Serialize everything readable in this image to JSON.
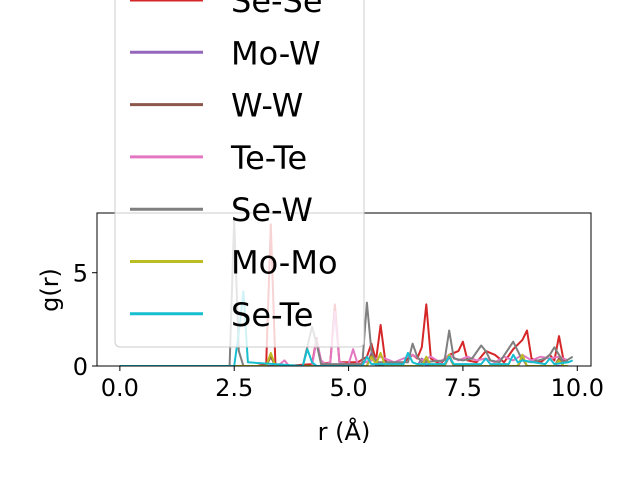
{
  "chart_data": {
    "type": "line",
    "title": "",
    "xlabel": "r (Å)",
    "ylabel": "g(r)",
    "xlim": [
      -0.5,
      10.3
    ],
    "ylim": [
      0,
      8.2
    ],
    "x_ticks": [
      0.0,
      2.5,
      5.0,
      7.5,
      10.0
    ],
    "x_tick_labels": [
      "0.0",
      "2.5",
      "5.0",
      "7.5",
      "10.0"
    ],
    "y_ticks": [
      0,
      5
    ],
    "y_tick_labels": [
      "0",
      "5"
    ],
    "grid": false,
    "legend_position": "upper-left, extends above plot area",
    "series": [
      {
        "name": "Se-Se",
        "color": "#d62728",
        "x": [
          0,
          3.0,
          3.2,
          3.3,
          3.4,
          3.6,
          4.2,
          4.3,
          4.4,
          4.6,
          4.7,
          4.8,
          5.2,
          5.4,
          5.5,
          5.6,
          5.7,
          5.8,
          5.9,
          6.2,
          6.4,
          6.5,
          6.6,
          6.7,
          6.8,
          7.0,
          7.2,
          7.4,
          7.5,
          7.6,
          7.8,
          8.0,
          8.2,
          8.4,
          8.6,
          8.8,
          8.9,
          9.0,
          9.2,
          9.4,
          9.5,
          9.6,
          9.7,
          9.8
        ],
        "y": [
          0,
          0,
          0.1,
          7.6,
          0.1,
          0,
          0.1,
          1.5,
          0.1,
          0.2,
          3.3,
          0.2,
          0.2,
          0.5,
          1.2,
          0.3,
          2.2,
          0.3,
          0.1,
          0.2,
          0.6,
          0.4,
          1.0,
          3.3,
          0.4,
          0.1,
          0.6,
          0.8,
          1.3,
          0.3,
          0.2,
          0.8,
          0.6,
          0.2,
          0.9,
          1.4,
          1.9,
          0.4,
          0.2,
          0.6,
          0.3,
          1.6,
          0.3,
          0.2
        ]
      },
      {
        "name": "Mo-W",
        "color": "#9467bd",
        "x": [
          0,
          3.2,
          3.3,
          3.4,
          5.4,
          5.5,
          5.6,
          6.5,
          6.6,
          6.7,
          7.1,
          7.2,
          7.3,
          8.7,
          8.8,
          8.9,
          9.8
        ],
        "y": [
          0,
          0,
          0.6,
          0,
          0,
          0.7,
          0,
          0,
          0.4,
          0,
          0,
          0.5,
          0,
          0,
          0.4,
          0,
          0
        ]
      },
      {
        "name": "W-W",
        "color": "#8c564b",
        "x": [
          0,
          3.2,
          3.3,
          3.4,
          5.4,
          5.5,
          5.6,
          5.7,
          6.6,
          6.7,
          6.8,
          7.1,
          7.2,
          7.3,
          8.7,
          8.8,
          8.9,
          9.5,
          9.6,
          9.7,
          9.8
        ],
        "y": [
          0,
          0,
          0.5,
          0,
          0,
          0.6,
          0.2,
          0,
          0,
          0.4,
          0,
          0,
          0.6,
          0,
          0,
          0.5,
          0,
          0,
          0.4,
          0,
          0
        ]
      },
      {
        "name": "Te-Te",
        "color": "#e377c2",
        "x": [
          0,
          3.4,
          3.5,
          3.6,
          3.7,
          4.2,
          4.3,
          4.4,
          4.5,
          4.6,
          4.7,
          4.8,
          5.0,
          5.1,
          5.2,
          5.5,
          5.7,
          6.0,
          6.2,
          6.4,
          6.6,
          6.8,
          7.0,
          7.2,
          7.4,
          7.6,
          7.8,
          8.0,
          8.2,
          8.4,
          8.6,
          8.8,
          9.0,
          9.2,
          9.4,
          9.6,
          9.8
        ],
        "y": [
          0,
          0,
          0.1,
          0.3,
          0,
          0,
          1.4,
          0.3,
          0.1,
          0.2,
          2.9,
          0.2,
          0.1,
          0.9,
          0.1,
          0.3,
          0.5,
          0.2,
          0.4,
          0.6,
          0.3,
          0.5,
          0.2,
          0.6,
          0.3,
          0.5,
          0.3,
          0.4,
          0.2,
          0.5,
          0.3,
          0.6,
          0.3,
          0.5,
          0.4,
          0.5,
          0.3
        ]
      },
      {
        "name": "Se-W",
        "color": "#7f7f7f",
        "x": [
          0,
          2.4,
          2.5,
          2.6,
          2.7,
          4.0,
          4.2,
          4.3,
          4.4,
          5.3,
          5.4,
          5.5,
          5.6,
          6.3,
          6.4,
          6.5,
          6.6,
          7.1,
          7.2,
          7.3,
          7.5,
          7.7,
          7.9,
          8.0,
          8.1,
          8.3,
          8.6,
          8.7,
          8.8,
          9.0,
          9.3,
          9.4,
          9.5,
          9.7,
          9.9
        ],
        "y": [
          0,
          0,
          7.9,
          0.8,
          0,
          0,
          2.1,
          1.2,
          0.1,
          0.1,
          3.4,
          0.8,
          0.2,
          0.2,
          1.2,
          0.5,
          0.2,
          0.3,
          1.9,
          0.4,
          0.3,
          0.4,
          1.1,
          0.8,
          0.3,
          0.2,
          1.3,
          0.8,
          0.3,
          0.2,
          0.4,
          0.6,
          1.0,
          0.2,
          0.5
        ]
      },
      {
        "name": "Mo-Mo",
        "color": "#bcbd22",
        "x": [
          0,
          3.2,
          3.3,
          3.4,
          5.4,
          5.5,
          5.6,
          5.7,
          5.8,
          6.6,
          6.7,
          6.8,
          7.1,
          7.2,
          7.3,
          8.7,
          8.8,
          8.9,
          9.5,
          9.6,
          9.7,
          9.8
        ],
        "y": [
          0,
          0,
          0.7,
          0,
          0,
          0.5,
          0.1,
          0.7,
          0,
          0,
          0.5,
          0,
          0,
          0.6,
          0,
          0,
          0.6,
          0,
          0,
          0.3,
          0,
          0
        ]
      },
      {
        "name": "Se-Te",
        "color": "#17becf",
        "x": [
          0,
          2.5,
          2.6,
          2.7,
          2.8,
          4.0,
          4.1,
          4.2,
          4.3,
          5.3,
          5.4,
          5.5,
          6.2,
          6.3,
          6.4,
          6.5,
          7.1,
          7.2,
          7.3,
          7.9,
          8.0,
          8.1,
          8.5,
          8.6,
          8.7,
          8.8,
          9.3,
          9.4,
          9.5,
          9.8,
          9.9
        ],
        "y": [
          0,
          0,
          1.8,
          4.0,
          0.2,
          0,
          0.9,
          0.2,
          0,
          0,
          0.5,
          0.1,
          0.1,
          0.7,
          0.2,
          0.1,
          0.1,
          0.5,
          0.1,
          0.1,
          0.4,
          0.1,
          0.1,
          0.6,
          0.2,
          0.3,
          0.1,
          0.4,
          0.1,
          0.2,
          0.3
        ]
      }
    ]
  }
}
